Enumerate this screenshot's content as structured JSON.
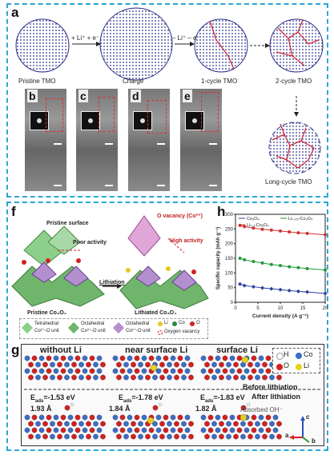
{
  "panel_a": {
    "label": "a",
    "stages": [
      "Pristine TMO",
      "Charge",
      "1-cycle TMO",
      "2-cycle TMO",
      "Long-cycle TMO"
    ],
    "arrow_charge": "+ Li⁺ + e⁻",
    "arrow_discharge": "– Li⁺ – e⁻",
    "tem_labels": [
      "b",
      "c",
      "d",
      "e"
    ]
  },
  "panel_f": {
    "label": "f",
    "pristine_surface": "Pristine surface",
    "poor_activity": "Poor activity",
    "lithiation": "Lithiation",
    "o_vacancy": "O vacancy (Co²⁺)",
    "high_activity": "High activity",
    "pristine_name": "Pristine Co₃O₄",
    "lithiated_name": "Lithiated Co₃O₄",
    "legend": {
      "tetrahedral": "Tetrahedral",
      "tetrahedral_sub": "Co²⁺-O unit",
      "octahedral1": "Octahedral",
      "octahedral1_sub": "Co³⁺-O unit",
      "octahedral2": "Octahedral",
      "octahedral2_sub": "Co²⁺-O unit",
      "li": "Li",
      "co": "Co",
      "o": "O",
      "vacancy": "Oxygen vacancy"
    }
  },
  "panel_h": {
    "label": "h",
    "colors": {
      "co3o4": "#2a3fa0",
      "li005": "#1f9a3a",
      "li01": "#d43030"
    }
  },
  "chart_data": {
    "type": "line",
    "xlabel": "Current density (A g⁻¹)",
    "ylabel": "Specific capacity (mAh g⁻¹)",
    "xlim": [
      0,
      20
    ],
    "ylim": [
      0,
      300
    ],
    "xticks": [
      0,
      5,
      10,
      15,
      20
    ],
    "yticks": [
      0,
      50,
      100,
      150,
      200,
      250,
      300
    ],
    "x": [
      1,
      2,
      4,
      6,
      8,
      10,
      12,
      14,
      16,
      20
    ],
    "series": [
      {
        "name": "Co₃O₄",
        "values": [
          62,
          57,
          53,
          49,
          46,
          43,
          40,
          37,
          35,
          30
        ]
      },
      {
        "name": "Li₀.₀₅-Co₃O₄",
        "values": [
          150,
          145,
          139,
          134,
          129,
          125,
          121,
          118,
          115,
          110
        ]
      },
      {
        "name": "Li₀.₁-Co₃O₄",
        "values": [
          262,
          258,
          253,
          249,
          246,
          243,
          240,
          237,
          235,
          230
        ]
      }
    ],
    "legend_position": "top"
  },
  "panel_g": {
    "label": "g",
    "titles": [
      "without Li",
      "near surface Li",
      "surface Li"
    ],
    "before": "Before lithiation",
    "after": "After lithiation",
    "eads": [
      "E_ads=-1.53 eV",
      "E_ads=-1.78 eV",
      "E_ads=-1.83 eV"
    ],
    "eads_parts": [
      {
        "e": "E",
        "sub": "ads",
        "val": "=-1.53 eV"
      },
      {
        "e": "E",
        "sub": "ads",
        "val": "=-1.78 eV"
      },
      {
        "e": "E",
        "sub": "ads",
        "val": "=-1.83 eV"
      }
    ],
    "distances": [
      "1.93 Å",
      "1.84 Å",
      "1.82 Å"
    ],
    "absorbed": "Absorbed OH⁻",
    "legend": {
      "h": "H",
      "co": "Co",
      "o": "O",
      "li": "Li"
    },
    "axes": {
      "c": "c",
      "a": "a",
      "b": "b"
    }
  }
}
